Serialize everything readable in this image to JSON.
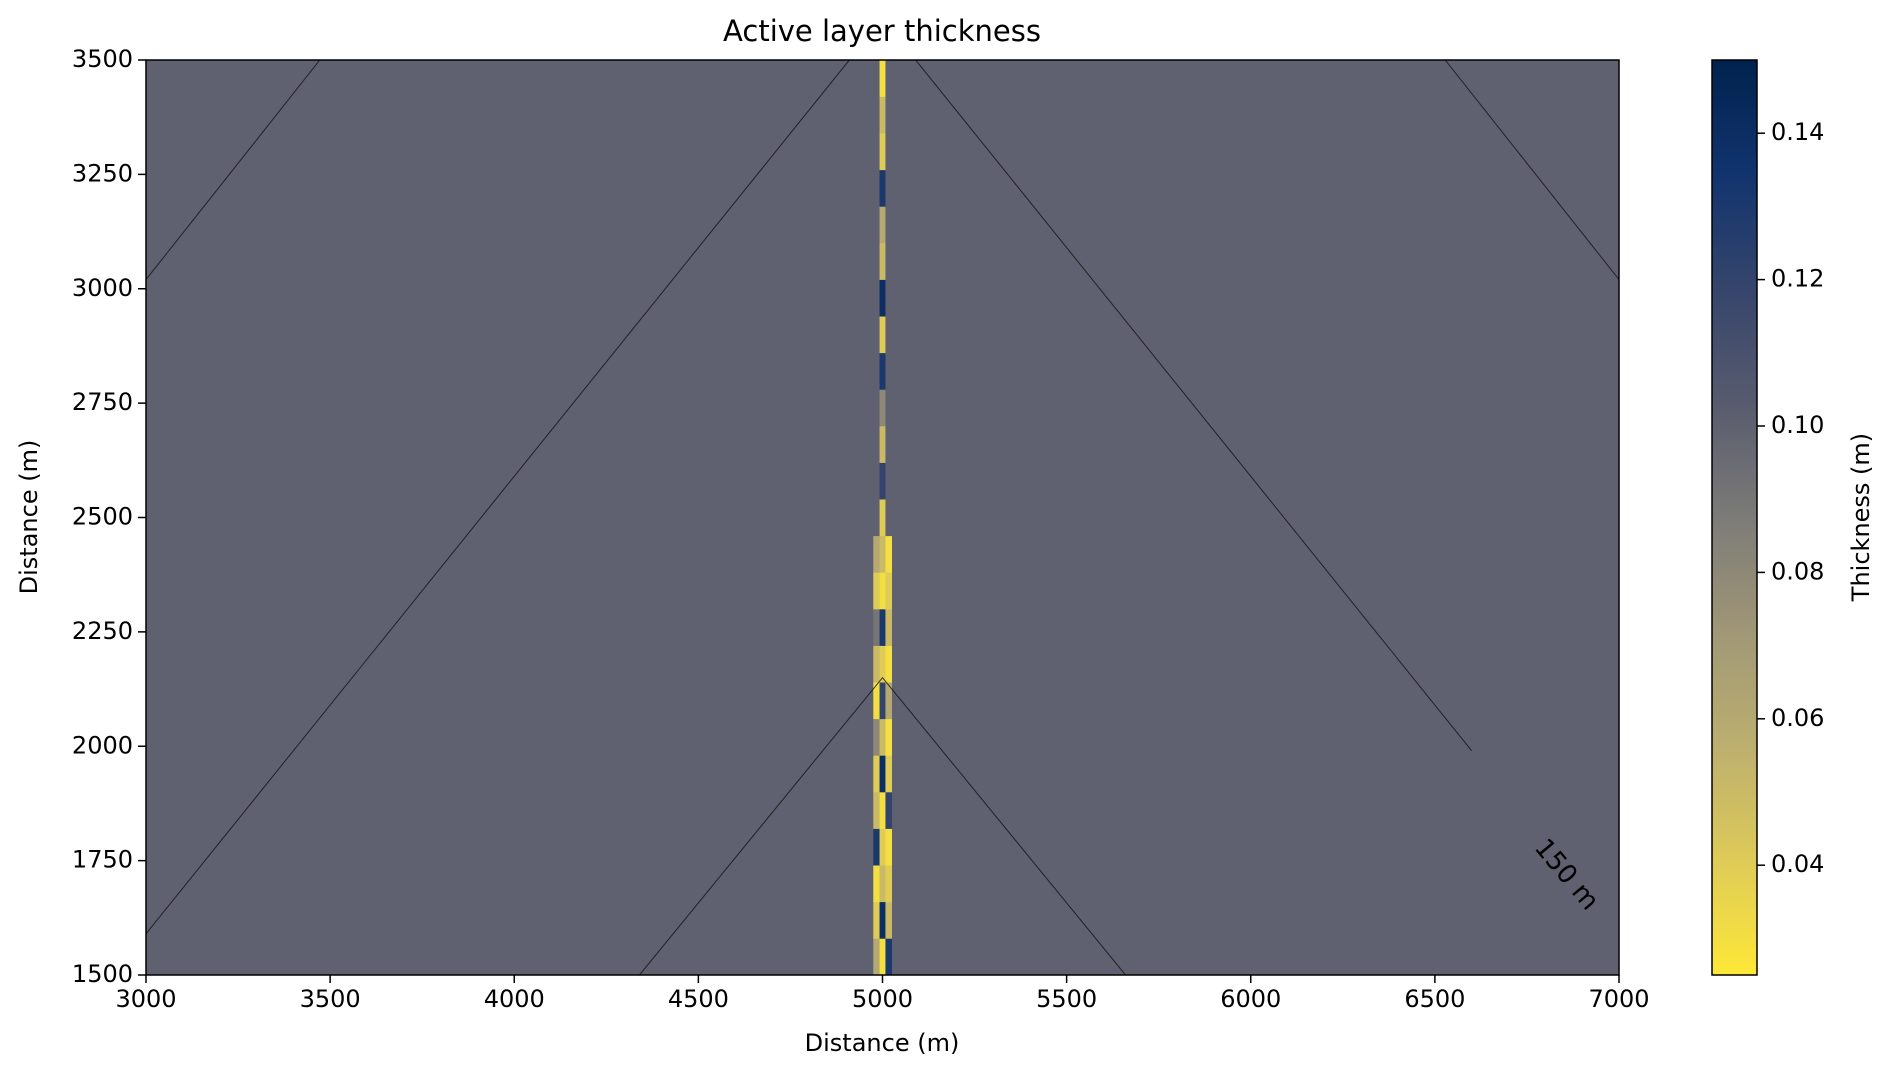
{
  "chart_data": {
    "type": "heatmap",
    "title": "Active layer thickness",
    "xlabel": "Distance (m)",
    "ylabel": "Distance (m)",
    "colorbar_label": "Thickness (m)",
    "colormap": "cividis_r",
    "xlim": [
      3000,
      7000
    ],
    "ylim": [
      1500,
      3500
    ],
    "xticks": [
      3000,
      3500,
      4000,
      4500,
      5000,
      5500,
      6000,
      6500,
      7000
    ],
    "yticks": [
      1500,
      1750,
      2000,
      2250,
      2500,
      2750,
      3000,
      3250,
      3500
    ],
    "clim": [
      0.025,
      0.15
    ],
    "cticks": [
      0.04,
      0.06,
      0.08,
      0.1,
      0.12,
      0.14
    ],
    "ctick_labels": [
      "0.04",
      "0.06",
      "0.08",
      "0.10",
      "0.12",
      "0.14"
    ],
    "background_value": 0.1,
    "x_edges": [
      4975,
      4992,
      5008,
      5025
    ],
    "y_edges": [
      1500,
      1580,
      1660,
      1740,
      1820,
      1900,
      1980,
      2060,
      2140,
      2220,
      2300,
      2380,
      2460,
      2540,
      2620,
      2700,
      2780,
      2860,
      2940,
      3020,
      3100,
      3180,
      3260,
      3340,
      3420,
      3500
    ],
    "z": [
      [
        0.06,
        0.03,
        0.13
      ],
      [
        0.04,
        0.14,
        0.05
      ],
      [
        0.03,
        0.05,
        0.04
      ],
      [
        0.13,
        0.04,
        0.03
      ],
      [
        0.05,
        0.03,
        0.12
      ],
      [
        0.04,
        0.14,
        0.04
      ],
      [
        0.08,
        0.05,
        0.03
      ],
      [
        0.03,
        0.12,
        0.06
      ],
      [
        0.05,
        0.04,
        0.03
      ],
      [
        0.09,
        0.13,
        0.05
      ],
      [
        0.04,
        0.03,
        0.04
      ],
      [
        0.06,
        0.05,
        0.03
      ],
      [
        0.1,
        0.04,
        0.1
      ],
      [
        0.1,
        0.12,
        0.1
      ],
      [
        0.1,
        0.05,
        0.1
      ],
      [
        0.1,
        0.08,
        0.1
      ],
      [
        0.1,
        0.13,
        0.1
      ],
      [
        0.1,
        0.04,
        0.1
      ],
      [
        0.1,
        0.14,
        0.1
      ],
      [
        0.1,
        0.05,
        0.1
      ],
      [
        0.1,
        0.06,
        0.1
      ],
      [
        0.1,
        0.13,
        0.1
      ],
      [
        0.1,
        0.04,
        0.1
      ],
      [
        0.1,
        0.05,
        0.1
      ],
      [
        0.1,
        0.03,
        0.1
      ]
    ],
    "contours": [
      {
        "x": [
          3000,
          3472
        ],
        "y": [
          3020,
          3500
        ]
      },
      {
        "x": [
          3000,
          4910
        ],
        "y": [
          1590,
          3500
        ]
      },
      {
        "x": [
          5090,
          6600
        ],
        "y": [
          3500,
          1990
        ]
      },
      {
        "x": [
          6528,
          7000
        ],
        "y": [
          3500,
          3020
        ]
      },
      {
        "x": [
          4340,
          5000,
          5660
        ],
        "y": [
          1500,
          2150,
          1500
        ]
      }
    ],
    "contour_label": "150 m"
  }
}
